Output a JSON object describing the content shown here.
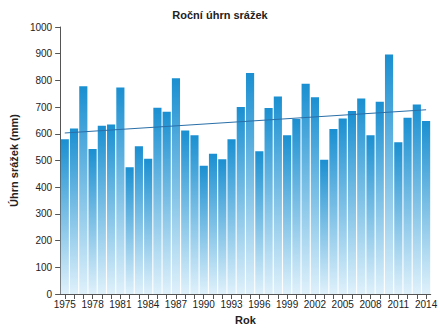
{
  "chart_data": {
    "type": "bar",
    "title": "Roční úhrn srážek",
    "x_label": "Rok",
    "y_label": "Úhrn srážek (mm)",
    "categories": [
      "1975",
      null,
      null,
      "1978",
      null,
      null,
      "1981",
      null,
      null,
      "1984",
      null,
      null,
      "1987",
      null,
      null,
      "1990",
      null,
      null,
      "1993",
      null,
      null,
      "1996",
      null,
      null,
      "1999",
      null,
      null,
      "2002",
      null,
      null,
      "2005",
      null,
      null,
      "2008",
      null,
      null,
      "2011",
      null,
      null,
      "2014"
    ],
    "values": [
      580,
      620,
      778,
      543,
      630,
      635,
      773,
      475,
      553,
      507,
      698,
      683,
      808,
      612,
      595,
      480,
      525,
      505,
      580,
      700,
      828,
      535,
      697,
      740,
      595,
      655,
      787,
      737,
      503,
      618,
      657,
      685,
      732,
      595,
      720,
      897,
      568,
      660,
      710,
      648
    ],
    "color": "#1a8fd1",
    "trend": {
      "start": 603,
      "end": 690,
      "color": "#2a6fa8"
    },
    "ylim": [
      0,
      1000
    ],
    "yticks": [
      0,
      100,
      200,
      300,
      400,
      500,
      600,
      700,
      800,
      900,
      1000
    ],
    "grid": false
  }
}
